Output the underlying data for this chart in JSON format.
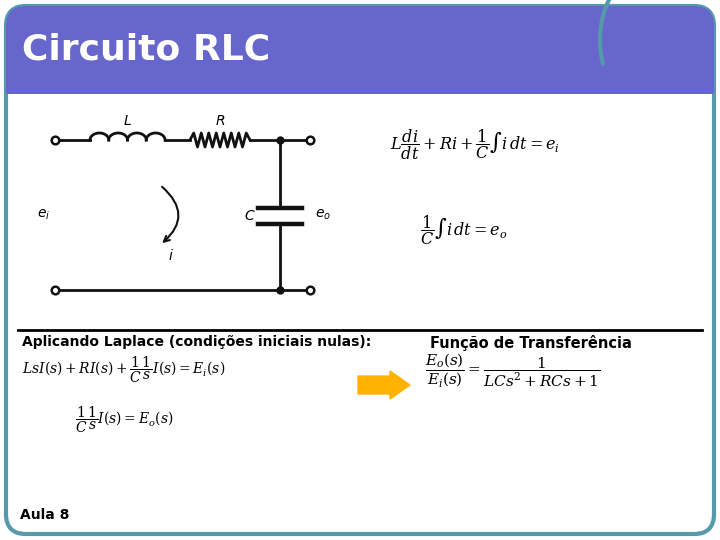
{
  "title": "Circuito RLC",
  "title_bg_color": "#6666cc",
  "title_text_color": "#ffffff",
  "title_fontsize": 26,
  "border_color": "#5599aa",
  "bg_color": "#ffffff",
  "label_aplicando": "Aplicando Laplace (condições iniciais nulas):",
  "label_funcao": "Função de Transferência",
  "label_aula": "Aula 8",
  "circuit_color": "#111111",
  "arrow_color": "#FFB300"
}
